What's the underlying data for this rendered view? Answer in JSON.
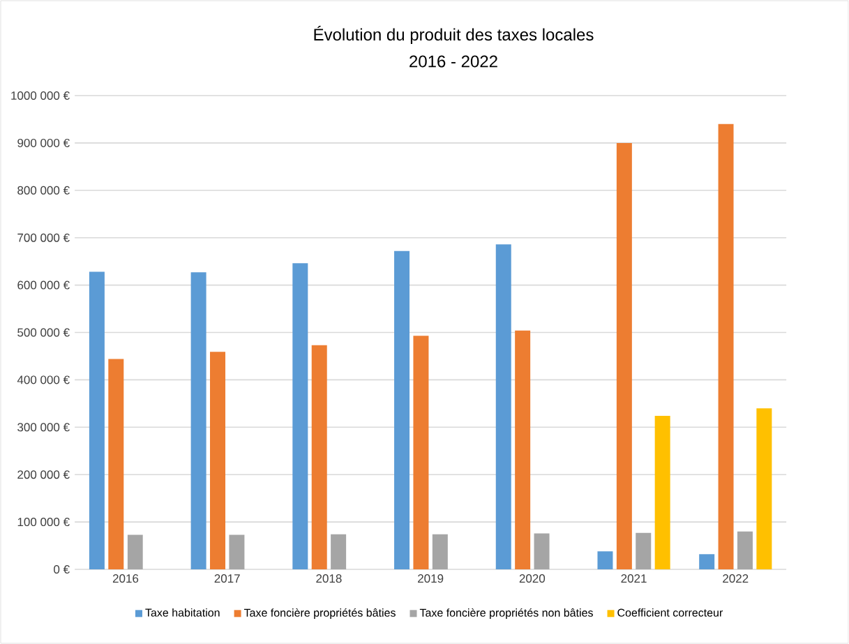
{
  "chart_data": {
    "type": "bar",
    "title": "Évolution du produit des taxes locales",
    "subtitle": "2016 - 2022",
    "categories": [
      "2016",
      "2017",
      "2018",
      "2019",
      "2020",
      "2021",
      "2022"
    ],
    "series": [
      {
        "name": "Taxe habitation",
        "color": "#5b9bd5",
        "values": [
          628000,
          627000,
          646000,
          672000,
          686000,
          38000,
          32000
        ]
      },
      {
        "name": "Taxe foncière propriétés bâties",
        "color": "#ed7d31",
        "values": [
          444000,
          459000,
          473000,
          493000,
          504000,
          900000,
          940000
        ]
      },
      {
        "name": "Taxe foncière propriétés non bâties",
        "color": "#a5a5a5",
        "values": [
          73000,
          73000,
          74000,
          74000,
          76000,
          77000,
          80000
        ]
      },
      {
        "name": "Coefficient correcteur",
        "color": "#ffc000",
        "values": [
          null,
          null,
          null,
          null,
          null,
          324000,
          340000
        ]
      }
    ],
    "ylim": [
      0,
      1000000
    ],
    "yticks": [
      {
        "value": 0,
        "label": "0 €"
      },
      {
        "value": 100000,
        "label": "100 000 €"
      },
      {
        "value": 200000,
        "label": "200 000 €"
      },
      {
        "value": 300000,
        "label": "300 000 €"
      },
      {
        "value": 400000,
        "label": "400 000 €"
      },
      {
        "value": 500000,
        "label": "500 000 €"
      },
      {
        "value": 600000,
        "label": "600 000 €"
      },
      {
        "value": 700000,
        "label": "700 000 €"
      },
      {
        "value": 800000,
        "label": "800 000 €"
      },
      {
        "value": 900000,
        "label": "900 000 €"
      },
      {
        "value": 1000000,
        "label": "1000 000 €"
      }
    ],
    "grid": "y",
    "legend": "bottom"
  }
}
